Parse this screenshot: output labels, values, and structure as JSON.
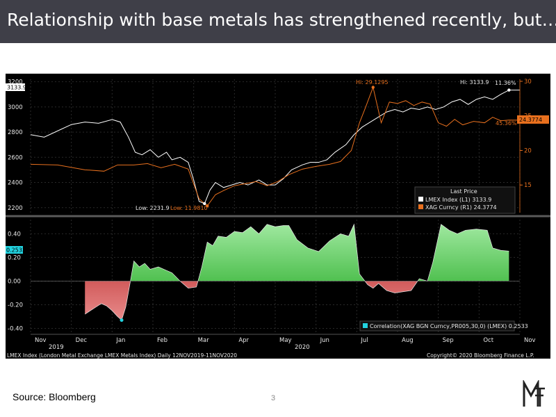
{
  "title": "Relationship with base metals has strengthened recently, but…",
  "source": "Source: Bloomberg",
  "page_number": "3",
  "footer_left": "LMEX Index (London Metal Exchange LMEX Metals Index)  Daily 12NOV2019-11NOV2020",
  "footer_right": "Copyright© 2020 Bloomberg Finance L.P.",
  "colors": {
    "lmex": "#ffffff",
    "silver": "#e8701e",
    "corr_pos": "#1aa51a",
    "corr_neg": "#b01818",
    "background": "#000000",
    "accent": "#22d3e0"
  },
  "chart_data": [
    {
      "type": "line",
      "x_ticks": [
        "Nov",
        "Dec",
        "Jan",
        "Feb",
        "Mar",
        "Apr",
        "May",
        "Jun",
        "Jul",
        "Aug",
        "Sep",
        "Oct",
        "Nov"
      ],
      "x_years": [
        "2019",
        "2020"
      ],
      "left_axis": {
        "ticks": [
          "2200",
          "2400",
          "2600",
          "2800",
          "3000",
          "3200"
        ],
        "ylim": [
          2160,
          3220
        ]
      },
      "right_axis": {
        "ticks": [
          "15",
          "20",
          "25",
          "30"
        ],
        "ylim": [
          11,
          30.3
        ]
      },
      "series": [
        {
          "name": "LMEX Index",
          "axis": "left",
          "values": [
            [
              0,
              2780
            ],
            [
              0.5,
              2760
            ],
            [
              1,
              2810
            ],
            [
              1.5,
              2860
            ],
            [
              2,
              2880
            ],
            [
              2.5,
              2870
            ],
            [
              3,
              2900
            ],
            [
              3.3,
              2880
            ],
            [
              3.6,
              2760
            ],
            [
              3.85,
              2640
            ],
            [
              4.1,
              2620
            ],
            [
              4.4,
              2660
            ],
            [
              4.7,
              2600
            ],
            [
              5.0,
              2640
            ],
            [
              5.2,
              2580
            ],
            [
              5.5,
              2600
            ],
            [
              5.8,
              2560
            ],
            [
              6.0,
              2420
            ],
            [
              6.2,
              2250
            ],
            [
              6.4,
              2232
            ],
            [
              6.6,
              2340
            ],
            [
              6.8,
              2400
            ],
            [
              7.1,
              2360
            ],
            [
              7.4,
              2380
            ],
            [
              7.7,
              2400
            ],
            [
              8.0,
              2380
            ],
            [
              8.4,
              2420
            ],
            [
              8.7,
              2380
            ],
            [
              9.0,
              2380
            ],
            [
              9.3,
              2430
            ],
            [
              9.6,
              2500
            ],
            [
              10.0,
              2540
            ],
            [
              10.3,
              2560
            ],
            [
              10.6,
              2560
            ],
            [
              10.9,
              2580
            ],
            [
              11.2,
              2640
            ],
            [
              11.6,
              2700
            ],
            [
              11.9,
              2780
            ],
            [
              12.2,
              2840
            ],
            [
              12.5,
              2880
            ],
            [
              12.8,
              2920
            ],
            [
              13.1,
              2960
            ],
            [
              13.4,
              2980
            ],
            [
              13.7,
              2960
            ],
            [
              14.0,
              2990
            ],
            [
              14.3,
              2980
            ],
            [
              14.6,
              3000
            ],
            [
              14.9,
              2980
            ],
            [
              15.2,
              3000
            ],
            [
              15.5,
              3040
            ],
            [
              15.8,
              3060
            ],
            [
              16.1,
              3020
            ],
            [
              16.4,
              3060
            ],
            [
              16.7,
              3080
            ],
            [
              17.0,
              3060
            ],
            [
              17.3,
              3100
            ],
            [
              17.6,
              3133.9
            ],
            [
              18.0,
              3133.9
            ]
          ]
        },
        {
          "name": "XAG Curncy",
          "axis": "right",
          "values": [
            [
              0,
              18.0
            ],
            [
              1,
              17.9
            ],
            [
              2,
              17.2
            ],
            [
              2.7,
              17.0
            ],
            [
              3.2,
              17.9
            ],
            [
              3.8,
              17.9
            ],
            [
              4.3,
              18.1
            ],
            [
              4.8,
              17.5
            ],
            [
              5.3,
              18.0
            ],
            [
              5.8,
              17.3
            ],
            [
              6.2,
              13.0
            ],
            [
              6.5,
              11.98
            ],
            [
              6.8,
              13.6
            ],
            [
              7.1,
              14.2
            ],
            [
              7.5,
              14.9
            ],
            [
              7.9,
              15.2
            ],
            [
              8.3,
              15.5
            ],
            [
              8.7,
              14.9
            ],
            [
              9.1,
              15.5
            ],
            [
              9.5,
              16.5
            ],
            [
              10.0,
              17.3
            ],
            [
              10.5,
              17.7
            ],
            [
              11.0,
              18.0
            ],
            [
              11.4,
              18.4
            ],
            [
              11.8,
              20.0
            ],
            [
              12.1,
              24.0
            ],
            [
              12.3,
              26.0
            ],
            [
              12.6,
              29.13
            ],
            [
              12.9,
              24.0
            ],
            [
              13.2,
              27.0
            ],
            [
              13.5,
              26.8
            ],
            [
              13.8,
              27.2
            ],
            [
              14.1,
              26.5
            ],
            [
              14.4,
              27.0
            ],
            [
              14.7,
              26.7
            ],
            [
              15.0,
              24.0
            ],
            [
              15.3,
              23.5
            ],
            [
              15.6,
              24.5
            ],
            [
              15.9,
              23.7
            ],
            [
              16.3,
              24.2
            ],
            [
              16.7,
              24.0
            ],
            [
              17.0,
              24.8
            ],
            [
              17.3,
              24.3
            ],
            [
              17.6,
              24.4
            ],
            [
              18.0,
              24.38
            ]
          ]
        }
      ],
      "highs": {
        "silver": "Hi: 29.1295",
        "lmex": "Hi: 3133.9"
      },
      "lows": {
        "lmex": "Low: 2231.9",
        "silver": "Low: 11.9810"
      },
      "last_values": {
        "lmex_left_tag": "3133.9",
        "lmex": "11.36%",
        "silver": "45.36%",
        "silver_tag": "24.3774"
      },
      "legend": {
        "title": "Last Price",
        "rows": [
          {
            "label": "LMEX Index  (L1)  3133.9"
          },
          {
            "label": "XAG Curncy  (R1)   24.3774"
          }
        ]
      }
    },
    {
      "type": "area",
      "name": "Correlation",
      "y_ticks": [
        "0.40",
        "0.20",
        "0.00",
        "-0.20",
        "-0.40"
      ],
      "ylim": [
        -0.45,
        0.52
      ],
      "current_tag": "0.2533",
      "legend": "Correlation(XAG BGN Curncy,PR005,30,0)  (LMEX)  0.2533",
      "values": [
        [
          2.0,
          -0.28
        ],
        [
          2.2,
          -0.25
        ],
        [
          2.4,
          -0.22
        ],
        [
          2.6,
          -0.19
        ],
        [
          2.8,
          -0.21
        ],
        [
          3.0,
          -0.25
        ],
        [
          3.2,
          -0.3
        ],
        [
          3.35,
          -0.33
        ],
        [
          3.5,
          -0.22
        ],
        [
          3.65,
          -0.03
        ],
        [
          3.8,
          0.17
        ],
        [
          4.0,
          0.12
        ],
        [
          4.2,
          0.15
        ],
        [
          4.4,
          0.1
        ],
        [
          4.7,
          0.12
        ],
        [
          5.0,
          0.09
        ],
        [
          5.2,
          0.07
        ],
        [
          5.5,
          0.0
        ],
        [
          5.8,
          -0.06
        ],
        [
          6.1,
          -0.05
        ],
        [
          6.3,
          0.12
        ],
        [
          6.5,
          0.33
        ],
        [
          6.7,
          0.3
        ],
        [
          6.9,
          0.38
        ],
        [
          7.2,
          0.37
        ],
        [
          7.5,
          0.42
        ],
        [
          7.8,
          0.41
        ],
        [
          8.1,
          0.46
        ],
        [
          8.4,
          0.4
        ],
        [
          8.7,
          0.48
        ],
        [
          9.0,
          0.46
        ],
        [
          9.3,
          0.47
        ],
        [
          9.5,
          0.47
        ],
        [
          9.8,
          0.35
        ],
        [
          10.2,
          0.28
        ],
        [
          10.6,
          0.25
        ],
        [
          11.0,
          0.34
        ],
        [
          11.4,
          0.4
        ],
        [
          11.7,
          0.38
        ],
        [
          11.9,
          0.48
        ],
        [
          12.1,
          0.06
        ],
        [
          12.4,
          -0.03
        ],
        [
          12.6,
          -0.06
        ],
        [
          12.8,
          -0.02
        ],
        [
          13.1,
          -0.08
        ],
        [
          13.4,
          -0.1
        ],
        [
          13.7,
          -0.09
        ],
        [
          14.0,
          -0.08
        ],
        [
          14.3,
          0.02
        ],
        [
          14.6,
          0.0
        ],
        [
          14.8,
          0.16
        ],
        [
          15.1,
          0.48
        ],
        [
          15.4,
          0.43
        ],
        [
          15.7,
          0.4
        ],
        [
          16.0,
          0.43
        ],
        [
          16.4,
          0.44
        ],
        [
          16.8,
          0.43
        ],
        [
          17.0,
          0.28
        ],
        [
          17.3,
          0.26
        ],
        [
          17.6,
          0.2533
        ]
      ]
    }
  ]
}
